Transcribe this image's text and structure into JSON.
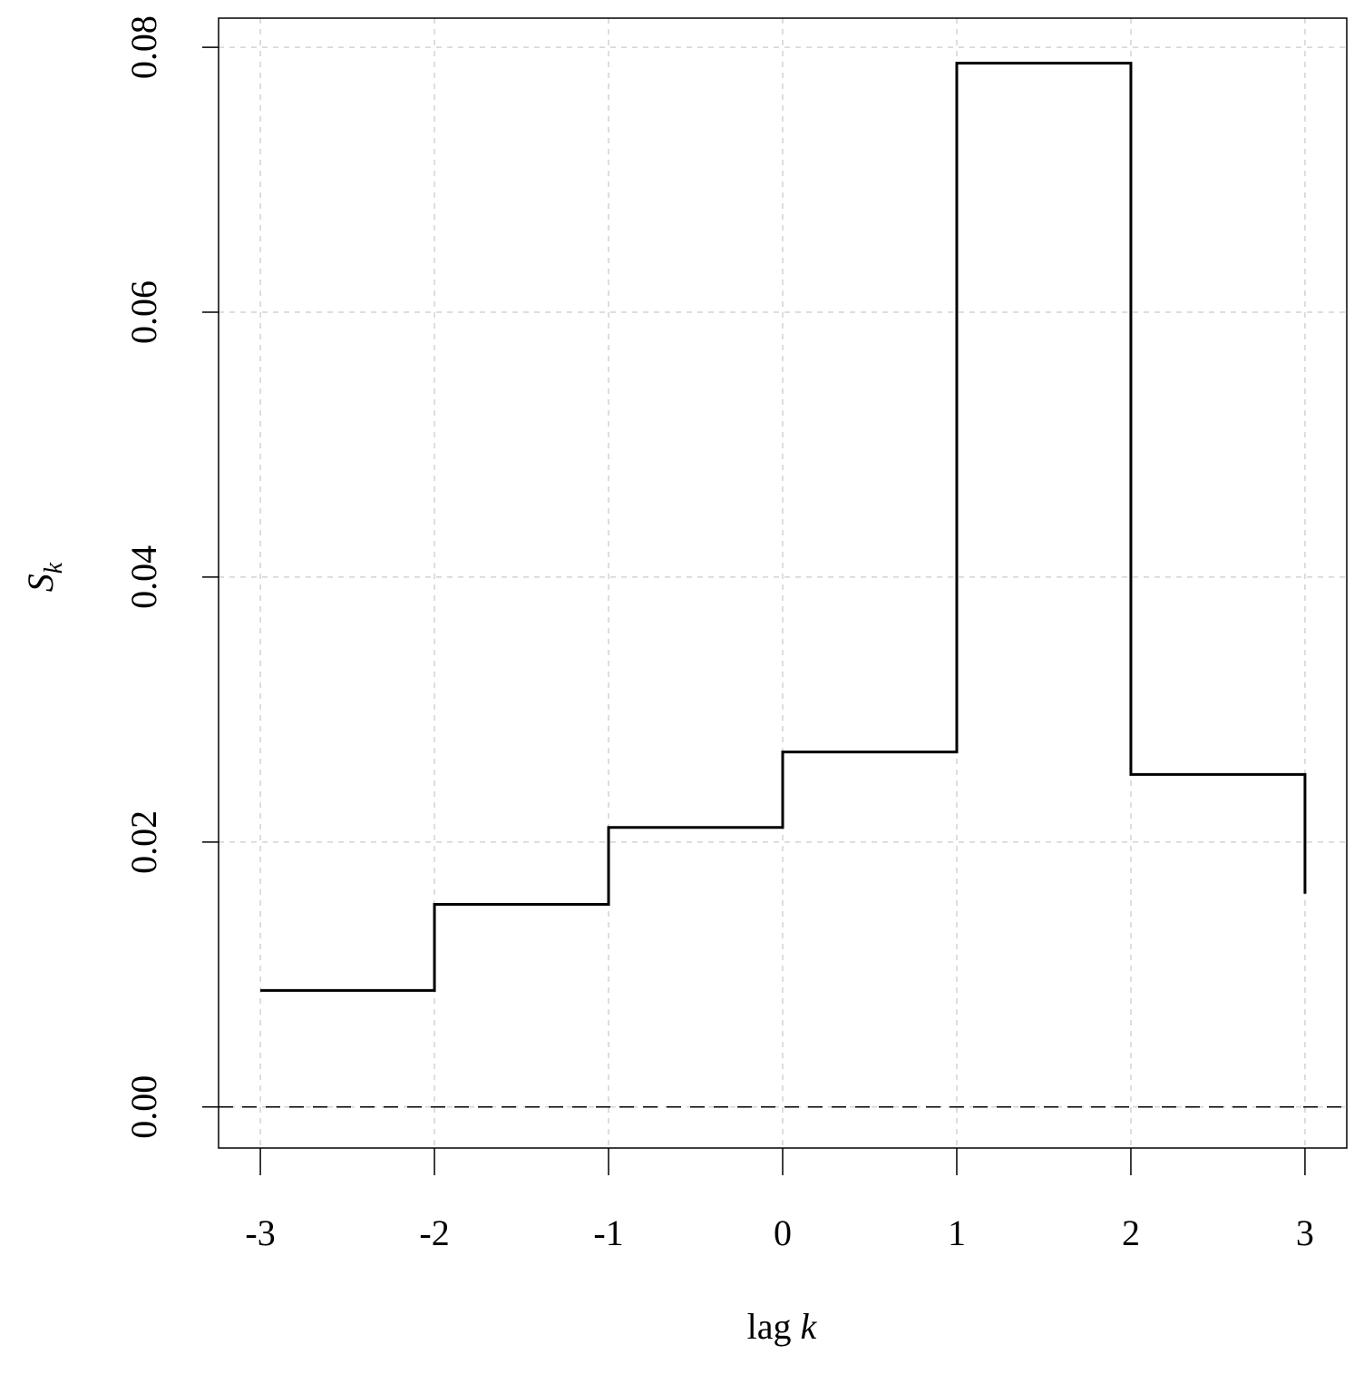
{
  "chart_data": {
    "type": "step",
    "xlabel": {
      "text": "lag",
      "variable": "k"
    },
    "ylabel": {
      "text": "S",
      "subscript": "k"
    },
    "x": [
      -3,
      -2,
      -1,
      0,
      1,
      2,
      3
    ],
    "values": [
      0.0088,
      0.0153,
      0.0211,
      0.0268,
      0.0788,
      0.0251,
      0.0161
    ],
    "color": "#000000",
    "xlim": [
      -3.24,
      3.24
    ],
    "ylim": [
      -0.0031,
      0.0822
    ],
    "xticks": [
      -3,
      -2,
      -1,
      0,
      1,
      2,
      3
    ],
    "yticks": [
      {
        "value": 0,
        "label": "0.00"
      },
      0.02,
      0.04,
      0.06,
      0.08
    ],
    "grid": true,
    "hline": 0
  }
}
